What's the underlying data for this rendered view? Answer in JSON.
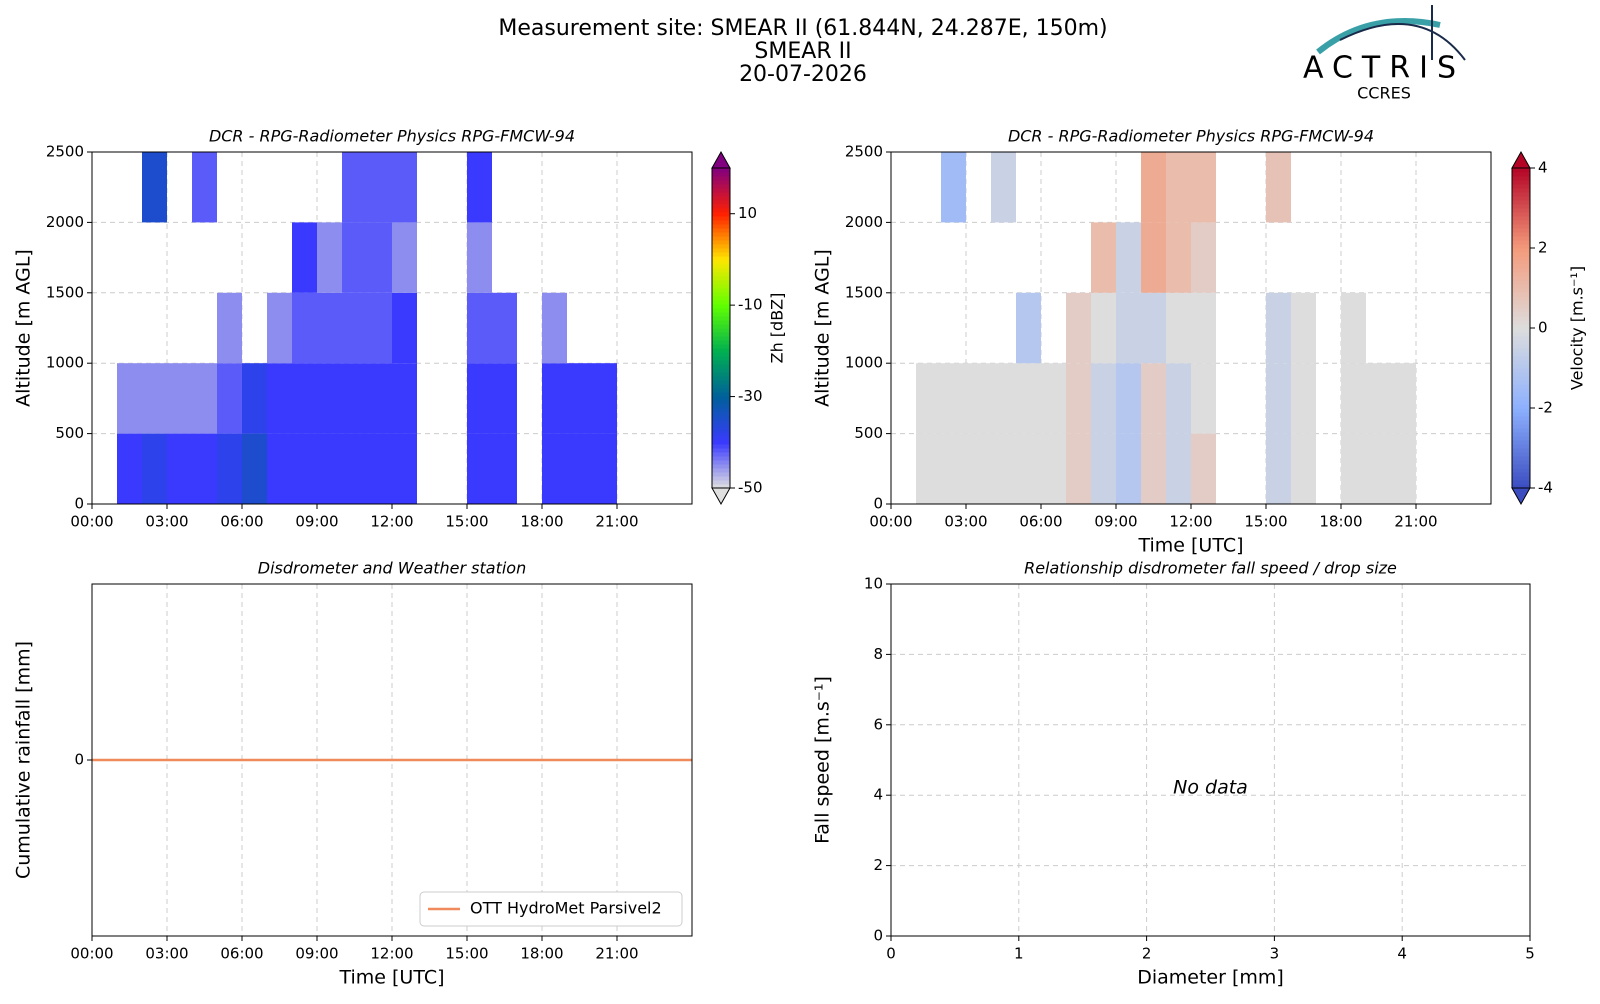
{
  "header": {
    "title": [
      "Measurement site: SMEAR II (61.844N, 24.287E, 150m)",
      "SMEAR II",
      "20-07-2026"
    ],
    "logo": "ACTRIS",
    "logo_sub": "CCRES"
  },
  "chart_data": [
    {
      "type": "heatmap",
      "title": "DCR - RPG-Radiometer Physics RPG-FMCW-94",
      "ylabel": "Altitude [m AGL]",
      "xlim": [
        0,
        24
      ],
      "xticks": [
        {
          "value": 0,
          "label": "00:00"
        },
        {
          "value": 3,
          "label": "03:00"
        },
        {
          "value": 6,
          "label": "06:00"
        },
        {
          "value": 9,
          "label": "09:00"
        },
        {
          "value": 12,
          "label": "12:00"
        },
        {
          "value": 15,
          "label": "15:00"
        },
        {
          "value": 18,
          "label": "18:00"
        },
        {
          "value": 21,
          "label": "21:00"
        }
      ],
      "ylim": [
        0,
        2500
      ],
      "yticks": [
        0,
        500,
        1000,
        1500,
        2000,
        2500
      ],
      "grid": true,
      "x_edges": [
        0,
        1,
        2,
        3,
        4,
        5,
        6,
        7,
        8,
        9,
        10,
        11,
        12,
        13,
        14,
        15,
        16,
        17,
        18,
        19,
        20,
        21,
        22,
        23,
        24
      ],
      "y_edges": [
        0,
        500,
        1000,
        1500,
        2000,
        2500
      ],
      "z": [
        [
          null,
          -40,
          -38,
          -40,
          -40,
          -38,
          -35,
          -40,
          -40,
          -40,
          -40,
          -40,
          -40,
          null,
          null,
          -40,
          -40,
          null,
          -40,
          -40,
          -40,
          null,
          null,
          null
        ],
        [
          null,
          -45,
          -45,
          -45,
          -45,
          -42,
          -38,
          -40,
          -40,
          -40,
          -40,
          -40,
          -40,
          null,
          null,
          -40,
          -40,
          null,
          -40,
          -40,
          -40,
          null,
          null,
          null
        ],
        [
          null,
          null,
          null,
          null,
          null,
          -45,
          null,
          -45,
          -42,
          -42,
          -42,
          -42,
          -40,
          null,
          null,
          -42,
          -42,
          null,
          -45,
          null,
          null,
          null,
          null,
          null
        ],
        [
          null,
          null,
          null,
          null,
          null,
          null,
          null,
          null,
          -40,
          -45,
          -42,
          -42,
          -45,
          null,
          null,
          -45,
          null,
          null,
          null,
          null,
          null,
          null,
          null,
          null
        ],
        [
          null,
          null,
          -35,
          null,
          -42,
          null,
          null,
          null,
          null,
          null,
          -42,
          -42,
          -42,
          null,
          null,
          -40,
          null,
          null,
          null,
          null,
          null,
          null,
          null,
          null
        ]
      ],
      "clim": [
        -50,
        20
      ],
      "cticks": [
        -50,
        -30,
        -10,
        10
      ],
      "clabel": "Zh [dBZ]",
      "colorbar_extend": "both",
      "colormap": [
        "#e0e0e0",
        "#3a3aff",
        "#00609a",
        "#00b050",
        "#60ff00",
        "#ffe600",
        "#ff2000",
        "#800080"
      ]
    },
    {
      "type": "heatmap",
      "title": "DCR - RPG-Radiometer Physics RPG-FMCW-94",
      "xlabel": "Time [UTC]",
      "ylabel": "Altitude [m AGL]",
      "xlim": [
        0,
        24
      ],
      "xticks": [
        {
          "value": 0,
          "label": "00:00"
        },
        {
          "value": 3,
          "label": "03:00"
        },
        {
          "value": 6,
          "label": "06:00"
        },
        {
          "value": 9,
          "label": "09:00"
        },
        {
          "value": 12,
          "label": "12:00"
        },
        {
          "value": 15,
          "label": "15:00"
        },
        {
          "value": 18,
          "label": "18:00"
        },
        {
          "value": 21,
          "label": "21:00"
        }
      ],
      "ylim": [
        0,
        2500
      ],
      "yticks": [
        0,
        500,
        1000,
        1500,
        2000,
        2500
      ],
      "grid": true,
      "x_edges": [
        0,
        1,
        2,
        3,
        4,
        5,
        6,
        7,
        8,
        9,
        10,
        11,
        12,
        13,
        14,
        15,
        16,
        17,
        18,
        19,
        20,
        21,
        22,
        23,
        24
      ],
      "y_edges": [
        0,
        500,
        1000,
        1500,
        2000,
        2500
      ],
      "z": [
        [
          null,
          0,
          0,
          0,
          0,
          0,
          0,
          0.5,
          -0.5,
          -1,
          0.5,
          -0.5,
          0.5,
          null,
          null,
          -0.5,
          0,
          null,
          0,
          0,
          0,
          null,
          null,
          null
        ],
        [
          null,
          0,
          0,
          0,
          0,
          0,
          0,
          0.5,
          -0.5,
          -1,
          0.5,
          -0.5,
          0,
          null,
          null,
          -0.5,
          0,
          null,
          0,
          0,
          0,
          null,
          null,
          null
        ],
        [
          null,
          null,
          null,
          null,
          null,
          -1,
          null,
          0.5,
          0,
          -0.5,
          -0.5,
          0,
          0,
          null,
          null,
          -0.5,
          0,
          null,
          0,
          null,
          null,
          null,
          null,
          null
        ],
        [
          null,
          null,
          null,
          null,
          null,
          null,
          null,
          null,
          1,
          -0.5,
          1.5,
          1,
          0.5,
          null,
          null,
          null,
          null,
          null,
          null,
          null,
          null,
          null,
          null,
          null
        ],
        [
          null,
          null,
          -1.5,
          null,
          -0.5,
          null,
          null,
          null,
          null,
          null,
          1.5,
          1,
          1,
          null,
          null,
          0.8,
          null,
          null,
          null,
          null,
          null,
          null,
          null,
          null
        ]
      ],
      "clim": [
        -4,
        4
      ],
      "cticks": [
        -4,
        -2,
        0,
        2,
        4
      ],
      "clabel": "Velocity [m.s⁻¹]",
      "colorbar_extend": "both",
      "colormap": [
        "#3b4cc0",
        "#8db0fe",
        "#dddddd",
        "#f49a7b",
        "#b40426"
      ]
    },
    {
      "type": "line",
      "title": "Disdrometer and Weather station",
      "xlabel": "Time [UTC]",
      "ylabel": "Cumulative rainfall [mm]",
      "xlim": [
        0,
        24
      ],
      "xticks": [
        {
          "value": 0,
          "label": "00:00"
        },
        {
          "value": 3,
          "label": "03:00"
        },
        {
          "value": 6,
          "label": "06:00"
        },
        {
          "value": 9,
          "label": "09:00"
        },
        {
          "value": 12,
          "label": "12:00"
        },
        {
          "value": 15,
          "label": "15:00"
        },
        {
          "value": 18,
          "label": "18:00"
        },
        {
          "value": 21,
          "label": "21:00"
        }
      ],
      "ylim": [
        -1,
        1
      ],
      "yticks": [
        0
      ],
      "grid": true,
      "legend": "lower right",
      "x": [
        0,
        24
      ],
      "series": [
        {
          "name": "OTT HydroMet Parsivel2",
          "color": "#f08a5d",
          "values": [
            0,
            0
          ]
        }
      ]
    },
    {
      "type": "scatter",
      "title": "Relationship disdrometer fall speed / drop size",
      "xlabel": "Diameter [mm]",
      "ylabel": "Fall speed [m.s⁻¹]",
      "xlim": [
        0,
        5
      ],
      "xticks": [
        0,
        1,
        2,
        3,
        4,
        5
      ],
      "ylim": [
        0,
        10
      ],
      "yticks": [
        0,
        2,
        4,
        6,
        8,
        10
      ],
      "grid": true,
      "x": [],
      "values": [],
      "annotation": "No data"
    }
  ]
}
